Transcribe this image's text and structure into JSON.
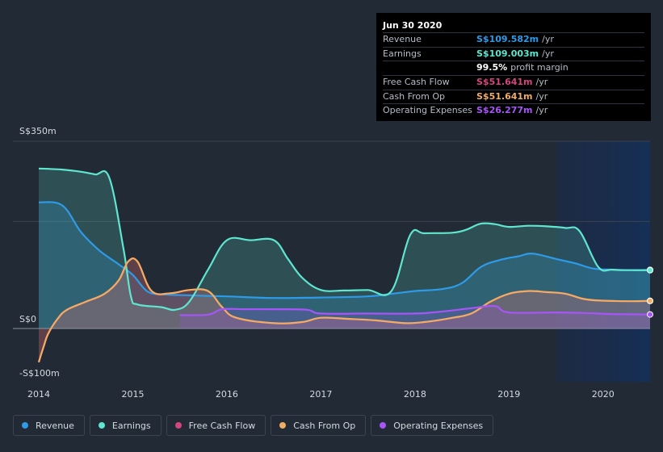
{
  "tooltip": {
    "date": "Jun 30 2020",
    "rows": [
      {
        "label": "Revenue",
        "value": "S$109.582m",
        "unit": "/yr",
        "color": "#2e9be8"
      },
      {
        "label": "Earnings",
        "value": "S$109.003m",
        "unit": "/yr",
        "color": "#5ee6cf"
      },
      {
        "label": "",
        "value": "99.5%",
        "unit": "profit margin",
        "color": "#ffffff"
      },
      {
        "label": "Free Cash Flow",
        "value": "S$51.641m",
        "unit": "/yr",
        "color": "#d6457e"
      },
      {
        "label": "Cash From Op",
        "value": "S$51.641m",
        "unit": "/yr",
        "color": "#f0ad63"
      },
      {
        "label": "Operating Expenses",
        "value": "S$26.277m",
        "unit": "/yr",
        "color": "#a855f7"
      }
    ]
  },
  "legend": [
    {
      "label": "Revenue",
      "color": "#2e9be8"
    },
    {
      "label": "Earnings",
      "color": "#5ee6cf"
    },
    {
      "label": "Free Cash Flow",
      "color": "#d6457e"
    },
    {
      "label": "Cash From Op",
      "color": "#f0ad63"
    },
    {
      "label": "Operating Expenses",
      "color": "#a855f7"
    }
  ],
  "chart_data": {
    "type": "area",
    "title": "",
    "xlabel": "",
    "ylabel": "",
    "unit": "S$ millions",
    "x_ticks": [
      "2014",
      "2015",
      "2016",
      "2017",
      "2018",
      "2019",
      "2020"
    ],
    "y_ticks": [
      {
        "value": 350,
        "label": "S$350m"
      },
      {
        "value": 0,
        "label": "S$0"
      },
      {
        "value": -100,
        "label": "-S$100m"
      }
    ],
    "xlim": [
      2014.0,
      2020.5
    ],
    "ylim": [
      -100,
      350
    ],
    "forecast_start": 2019.5,
    "grid": true,
    "series": [
      {
        "name": "Revenue",
        "color": "#2e9be8",
        "points": [
          [
            2014.0,
            236
          ],
          [
            2014.25,
            230
          ],
          [
            2014.45,
            180
          ],
          [
            2014.65,
            145
          ],
          [
            2014.85,
            120
          ],
          [
            2015.0,
            100
          ],
          [
            2015.15,
            70
          ],
          [
            2015.3,
            64
          ],
          [
            2015.6,
            62
          ],
          [
            2016.0,
            60
          ],
          [
            2016.5,
            57
          ],
          [
            2017.0,
            58
          ],
          [
            2017.5,
            60
          ],
          [
            2017.8,
            66
          ],
          [
            2018.0,
            70
          ],
          [
            2018.3,
            74
          ],
          [
            2018.5,
            85
          ],
          [
            2018.7,
            115
          ],
          [
            2018.9,
            128
          ],
          [
            2019.1,
            135
          ],
          [
            2019.25,
            140
          ],
          [
            2019.5,
            130
          ],
          [
            2019.7,
            122
          ],
          [
            2019.9,
            112
          ],
          [
            2020.1,
            110
          ],
          [
            2020.3,
            109
          ],
          [
            2020.5,
            109.6
          ]
        ]
      },
      {
        "name": "Earnings",
        "color": "#5ee6cf",
        "points": [
          [
            2014.0,
            299
          ],
          [
            2014.25,
            297
          ],
          [
            2014.45,
            293
          ],
          [
            2014.6,
            288
          ],
          [
            2014.75,
            282
          ],
          [
            2014.9,
            150
          ],
          [
            2014.98,
            60
          ],
          [
            2015.05,
            45
          ],
          [
            2015.3,
            40
          ],
          [
            2015.45,
            35
          ],
          [
            2015.6,
            50
          ],
          [
            2015.8,
            110
          ],
          [
            2016.0,
            165
          ],
          [
            2016.25,
            165
          ],
          [
            2016.5,
            165
          ],
          [
            2016.65,
            130
          ],
          [
            2016.8,
            95
          ],
          [
            2017.0,
            72
          ],
          [
            2017.25,
            71
          ],
          [
            2017.5,
            72
          ],
          [
            2017.75,
            70
          ],
          [
            2017.95,
            175
          ],
          [
            2018.1,
            178
          ],
          [
            2018.4,
            179
          ],
          [
            2018.55,
            185
          ],
          [
            2018.7,
            196
          ],
          [
            2018.85,
            195
          ],
          [
            2019.0,
            190
          ],
          [
            2019.2,
            192
          ],
          [
            2019.4,
            191
          ],
          [
            2019.6,
            188
          ],
          [
            2019.75,
            182
          ],
          [
            2019.95,
            115
          ],
          [
            2020.1,
            110
          ],
          [
            2020.3,
            109
          ],
          [
            2020.5,
            109
          ]
        ]
      },
      {
        "name": "Free Cash Flow",
        "color": "#d6457e",
        "points": [
          [
            2014.0,
            -63
          ],
          [
            2014.05,
            -35
          ],
          [
            2014.1,
            -10
          ],
          [
            2014.2,
            18
          ],
          [
            2014.3,
            35
          ],
          [
            2014.5,
            50
          ],
          [
            2014.7,
            65
          ],
          [
            2014.85,
            90
          ],
          [
            2014.95,
            125
          ],
          [
            2015.05,
            125
          ],
          [
            2015.2,
            70
          ],
          [
            2015.4,
            66
          ],
          [
            2015.6,
            72
          ],
          [
            2015.8,
            70
          ],
          [
            2015.95,
            40
          ],
          [
            2016.1,
            20
          ],
          [
            2016.5,
            10
          ],
          [
            2016.8,
            12
          ],
          [
            2017.0,
            20
          ],
          [
            2017.3,
            18
          ],
          [
            2017.6,
            15
          ],
          [
            2017.9,
            10
          ],
          [
            2018.1,
            12
          ],
          [
            2018.4,
            20
          ],
          [
            2018.6,
            28
          ],
          [
            2018.8,
            50
          ],
          [
            2019.0,
            65
          ],
          [
            2019.2,
            70
          ],
          [
            2019.4,
            68
          ],
          [
            2019.6,
            65
          ],
          [
            2019.8,
            55
          ],
          [
            2020.0,
            52
          ],
          [
            2020.3,
            51
          ],
          [
            2020.5,
            51.6
          ]
        ]
      },
      {
        "name": "Cash From Op",
        "color": "#f0ad63",
        "points": [
          [
            2014.0,
            -63
          ],
          [
            2014.05,
            -35
          ],
          [
            2014.1,
            -10
          ],
          [
            2014.2,
            18
          ],
          [
            2014.3,
            35
          ],
          [
            2014.5,
            50
          ],
          [
            2014.7,
            65
          ],
          [
            2014.85,
            90
          ],
          [
            2014.95,
            125
          ],
          [
            2015.05,
            125
          ],
          [
            2015.2,
            70
          ],
          [
            2015.4,
            66
          ],
          [
            2015.6,
            72
          ],
          [
            2015.8,
            70
          ],
          [
            2015.95,
            40
          ],
          [
            2016.1,
            20
          ],
          [
            2016.5,
            10
          ],
          [
            2016.8,
            12
          ],
          [
            2017.0,
            20
          ],
          [
            2017.3,
            18
          ],
          [
            2017.6,
            15
          ],
          [
            2017.9,
            10
          ],
          [
            2018.1,
            12
          ],
          [
            2018.4,
            20
          ],
          [
            2018.6,
            28
          ],
          [
            2018.8,
            50
          ],
          [
            2019.0,
            65
          ],
          [
            2019.2,
            70
          ],
          [
            2019.4,
            68
          ],
          [
            2019.6,
            65
          ],
          [
            2019.8,
            55
          ],
          [
            2020.0,
            52
          ],
          [
            2020.3,
            51
          ],
          [
            2020.5,
            51.6
          ]
        ]
      },
      {
        "name": "Operating Expenses",
        "color": "#a855f7",
        "points": [
          [
            2015.5,
            25
          ],
          [
            2015.8,
            26
          ],
          [
            2015.95,
            36
          ],
          [
            2016.2,
            36
          ],
          [
            2016.5,
            36
          ],
          [
            2016.85,
            35
          ],
          [
            2017.0,
            28
          ],
          [
            2017.5,
            28
          ],
          [
            2018.0,
            28
          ],
          [
            2018.3,
            32
          ],
          [
            2018.6,
            38
          ],
          [
            2018.85,
            42
          ],
          [
            2019.0,
            30
          ],
          [
            2019.5,
            30
          ],
          [
            2019.8,
            29
          ],
          [
            2020.1,
            27
          ],
          [
            2020.5,
            26.3
          ]
        ]
      }
    ]
  }
}
